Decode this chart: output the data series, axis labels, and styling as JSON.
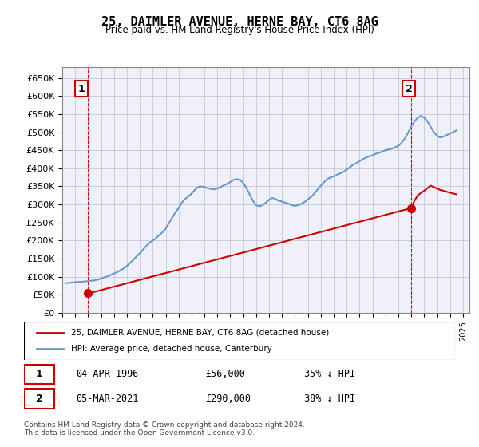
{
  "title": "25, DAIMLER AVENUE, HERNE BAY, CT6 8AG",
  "subtitle": "Price paid vs. HM Land Registry's House Price Index (HPI)",
  "ylim": [
    0,
    680000
  ],
  "yticks": [
    0,
    50000,
    100000,
    150000,
    200000,
    250000,
    300000,
    350000,
    400000,
    450000,
    500000,
    550000,
    600000,
    650000
  ],
  "hpi_color": "#6699cc",
  "price_color": "#cc0000",
  "marker_color": "#cc0000",
  "dashed_color": "#cc0000",
  "background_color": "#ffffff",
  "grid_color": "#aaaacc",
  "legend_label_red": "25, DAIMLER AVENUE, HERNE BAY, CT6 8AG (detached house)",
  "legend_label_blue": "HPI: Average price, detached house, Canterbury",
  "annotation1_label": "1",
  "annotation2_label": "2",
  "sale1_date": "04-APR-1996",
  "sale1_price": "£56,000",
  "sale1_hpi": "35% ↓ HPI",
  "sale2_date": "05-MAR-2021",
  "sale2_price": "£290,000",
  "sale2_hpi": "38% ↓ HPI",
  "footer": "Contains HM Land Registry data © Crown copyright and database right 2024.\nThis data is licensed under the Open Government Licence v3.0.",
  "hpi_years": [
    1994.25,
    1994.5,
    1994.75,
    1995.0,
    1995.25,
    1995.5,
    1995.75,
    1996.0,
    1996.25,
    1996.5,
    1996.75,
    1997.0,
    1997.25,
    1997.5,
    1997.75,
    1998.0,
    1998.25,
    1998.5,
    1998.75,
    1999.0,
    1999.25,
    1999.5,
    1999.75,
    2000.0,
    2000.25,
    2000.5,
    2000.75,
    2001.0,
    2001.25,
    2001.5,
    2001.75,
    2002.0,
    2002.25,
    2002.5,
    2002.75,
    2003.0,
    2003.25,
    2003.5,
    2003.75,
    2004.0,
    2004.25,
    2004.5,
    2004.75,
    2005.0,
    2005.25,
    2005.5,
    2005.75,
    2006.0,
    2006.25,
    2006.5,
    2006.75,
    2007.0,
    2007.25,
    2007.5,
    2007.75,
    2008.0,
    2008.25,
    2008.5,
    2008.75,
    2009.0,
    2009.25,
    2009.5,
    2009.75,
    2010.0,
    2010.25,
    2010.5,
    2010.75,
    2011.0,
    2011.25,
    2011.5,
    2011.75,
    2012.0,
    2012.25,
    2012.5,
    2012.75,
    2013.0,
    2013.25,
    2013.5,
    2013.75,
    2014.0,
    2014.25,
    2014.5,
    2014.75,
    2015.0,
    2015.25,
    2015.5,
    2015.75,
    2016.0,
    2016.25,
    2016.5,
    2016.75,
    2017.0,
    2017.25,
    2017.5,
    2017.75,
    2018.0,
    2018.25,
    2018.5,
    2018.75,
    2019.0,
    2019.25,
    2019.5,
    2019.75,
    2020.0,
    2020.25,
    2020.5,
    2020.75,
    2021.0,
    2021.25,
    2021.5,
    2021.75,
    2022.0,
    2022.25,
    2022.5,
    2022.75,
    2023.0,
    2023.25,
    2023.5,
    2023.75,
    2024.0,
    2024.25,
    2024.5
  ],
  "hpi_values": [
    82000,
    83000,
    84000,
    85000,
    85500,
    86000,
    87000,
    88000,
    89000,
    90000,
    92000,
    95000,
    98000,
    101000,
    105000,
    109000,
    113000,
    118000,
    123000,
    130000,
    138000,
    147000,
    156000,
    165000,
    175000,
    185000,
    194000,
    200000,
    207000,
    215000,
    223000,
    233000,
    248000,
    263000,
    278000,
    290000,
    305000,
    315000,
    322000,
    330000,
    340000,
    348000,
    350000,
    348000,
    345000,
    343000,
    342000,
    344000,
    348000,
    353000,
    357000,
    362000,
    368000,
    370000,
    368000,
    360000,
    345000,
    328000,
    310000,
    298000,
    295000,
    298000,
    305000,
    313000,
    318000,
    315000,
    310000,
    308000,
    305000,
    302000,
    298000,
    296000,
    298000,
    302000,
    307000,
    314000,
    321000,
    330000,
    341000,
    352000,
    362000,
    370000,
    375000,
    378000,
    382000,
    386000,
    390000,
    396000,
    403000,
    410000,
    414000,
    420000,
    425000,
    430000,
    433000,
    436000,
    440000,
    443000,
    446000,
    450000,
    452000,
    454000,
    458000,
    462000,
    470000,
    482000,
    498000,
    516000,
    530000,
    540000,
    545000,
    540000,
    530000,
    515000,
    500000,
    490000,
    485000,
    488000,
    492000,
    496000,
    500000,
    505000
  ],
  "price_years": [
    1996.0,
    1996.25,
    2021.0,
    2021.25,
    2021.5,
    2021.75,
    2022.0,
    2022.25,
    2022.5,
    2022.75,
    2023.0,
    2023.25,
    2023.5,
    2023.75,
    2024.0,
    2024.25,
    2024.5
  ],
  "price_values": [
    56000,
    56000,
    290000,
    310000,
    325000,
    332000,
    338000,
    345000,
    352000,
    348000,
    344000,
    340000,
    338000,
    335000,
    333000,
    330000,
    328000
  ],
  "sale1_x": 1996.0,
  "sale1_y": 56000,
  "sale2_x": 2021.0,
  "sale2_y": 290000,
  "xmin": 1994.0,
  "xmax": 2025.5
}
